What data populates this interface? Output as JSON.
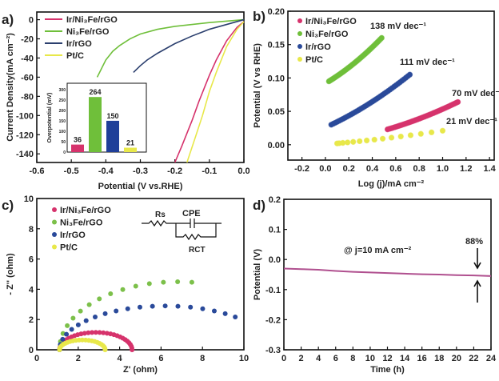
{
  "chart_data": [
    {
      "panel": "a)",
      "type": "line",
      "xlabel": "Potential (V vs.RHE)",
      "ylabel": "Current Density(mA cm⁻²)",
      "xlim": [
        -0.6,
        0.0
      ],
      "ylim": [
        -149,
        8
      ],
      "xticks": [
        "-0.6",
        "-0.5",
        "-0.4",
        "-0.3",
        "-0.2",
        "-0.1",
        "0.0"
      ],
      "yticks": [
        "0",
        "-20",
        "-40",
        "-60",
        "-80",
        "-100",
        "-120",
        "-140"
      ],
      "series": [
        {
          "name": "Ir/Ni₃Fe/rGO",
          "color": "#d6336c",
          "x": [
            0,
            -0.02,
            -0.05,
            -0.08,
            -0.1,
            -0.13,
            -0.15,
            -0.18,
            -0.2
          ],
          "y": [
            -2,
            -8,
            -22,
            -42,
            -58,
            -85,
            -105,
            -132,
            -149
          ]
        },
        {
          "name": "Ni₃Fe/rGO",
          "color": "#6fbf3a",
          "x": [
            0,
            -0.1,
            -0.2,
            -0.25,
            -0.3,
            -0.33,
            -0.36,
            -0.38,
            -0.4,
            -0.425
          ],
          "y": [
            0,
            -3,
            -7,
            -10,
            -15,
            -20,
            -27,
            -33,
            -42,
            -60
          ]
        },
        {
          "name": "Ir/rGO",
          "color": "#2b3f6e",
          "x": [
            0,
            -0.05,
            -0.1,
            -0.15,
            -0.2,
            -0.25,
            -0.28,
            -0.3,
            -0.32
          ],
          "y": [
            0,
            -5,
            -10,
            -17,
            -25,
            -35,
            -42,
            -48,
            -55
          ]
        },
        {
          "name": "Pt/C",
          "color": "#e8e84a",
          "x": [
            0,
            -0.02,
            -0.05,
            -0.08,
            -0.1,
            -0.12,
            -0.14,
            -0.165
          ],
          "y": [
            -2,
            -10,
            -28,
            -55,
            -75,
            -100,
            -122,
            -149
          ]
        }
      ],
      "inset": {
        "type": "bar",
        "ylabel": "Overpotential (mV)",
        "ylim": [
          0,
          330
        ],
        "yticks": [
          "0",
          "50",
          "100",
          "150",
          "200",
          "250",
          "300"
        ],
        "values": [
          36,
          264,
          150,
          21
        ],
        "labels": [
          "36",
          "264",
          "150",
          "21"
        ],
        "colors": [
          "#d6336c",
          "#6fbf3a",
          "#1f3f99",
          "#e8e84a"
        ]
      }
    },
    {
      "panel": "b)",
      "type": "scatter",
      "xlabel": "Log (j)/mA cm⁻²",
      "ylabel": "Potential (V vs RHE)",
      "xlim": [
        -0.32,
        1.44
      ],
      "ylim": [
        -0.023,
        0.2
      ],
      "xticks": [
        "-0.2",
        "0.0",
        "0.2",
        "0.4",
        "0.6",
        "0.8",
        "1.0",
        "1.2",
        "1.4"
      ],
      "yticks": [
        "0.00",
        "0.05",
        "0.10",
        "0.15",
        "0.20"
      ],
      "series": [
        {
          "name": "Ir/Ni₃Fe/rGO",
          "color": "#d6336c",
          "x0": 0.53,
          "x1": 1.13,
          "y0": 0.023,
          "y1": 0.064,
          "slope": "70 mV dec⁻¹"
        },
        {
          "name": "Ni₃Fe/rGO",
          "color": "#6fbf3a",
          "x0": 0.03,
          "x1": 0.48,
          "y0": 0.095,
          "y1": 0.16,
          "slope": "138 mV dec⁻¹"
        },
        {
          "name": "Ir/rGO",
          "color": "#2a4a9a",
          "x0": 0.05,
          "x1": 0.72,
          "y0": 0.03,
          "y1": 0.105,
          "slope": "111 mV dec⁻¹"
        },
        {
          "name": "Pt/C",
          "color": "#e8e84a",
          "x0": 0.1,
          "x1": 1.0,
          "y0": 0.002,
          "y1": 0.021,
          "slope": "21 mV dec⁻¹"
        }
      ]
    },
    {
      "panel": "c)",
      "type": "scatter",
      "xlabel": "Z' (ohm)",
      "ylabel": "- Z'' (ohm)",
      "xlim": [
        0,
        10
      ],
      "ylim": [
        0,
        10
      ],
      "xticks": [
        "0",
        "2",
        "4",
        "6",
        "8",
        "10"
      ],
      "yticks": [
        "0",
        "2",
        "4",
        "6",
        "8",
        "10"
      ],
      "circuit": {
        "rs": "Rs",
        "cpe": "CPE",
        "rct": "RCT"
      },
      "series": [
        {
          "name": "Ir/Ni₃Fe/rGO",
          "color": "#d6336c",
          "start": 1.1,
          "end": 4.6,
          "peak": 1.15,
          "end_y": 0
        },
        {
          "name": "Ni₃Fe/rGO",
          "color": "#7cc04a",
          "start": 1.1,
          "end": 7.6,
          "peak": 4.5,
          "end_y": 4.3
        },
        {
          "name": "Ir/rGO",
          "color": "#2a4a9a",
          "start": 1.1,
          "end": 9.9,
          "peak": 2.9,
          "end_y": 1.3
        },
        {
          "name": "Pt/C",
          "color": "#e8e84a",
          "start": 1.1,
          "end": 3.3,
          "peak": 0.65,
          "end_y": 0
        }
      ]
    },
    {
      "panel": "d)",
      "type": "line",
      "xlabel": "Time (h)",
      "ylabel": "Potential (V)",
      "xlim": [
        0,
        24
      ],
      "ylim": [
        -0.3,
        0.2
      ],
      "xticks": [
        "0",
        "2",
        "4",
        "6",
        "8",
        "10",
        "12",
        "14",
        "16",
        "18",
        "20",
        "22",
        "24"
      ],
      "yticks": [
        "-0.3",
        "-0.2",
        "-0.1",
        "0.0",
        "0.1",
        "0.2"
      ],
      "annotation": "@ j=10 mA cm⁻²",
      "retention": "88%",
      "series": [
        {
          "name": "Ir/Ni₃Fe/rGO",
          "color": "#b0508f",
          "x": [
            0,
            2,
            4,
            6,
            8,
            10,
            12,
            14,
            16,
            18,
            20,
            22,
            24
          ],
          "y": [
            -0.03,
            -0.032,
            -0.034,
            -0.038,
            -0.041,
            -0.043,
            -0.045,
            -0.047,
            -0.049,
            -0.05,
            -0.052,
            -0.053,
            -0.055
          ]
        }
      ]
    }
  ]
}
